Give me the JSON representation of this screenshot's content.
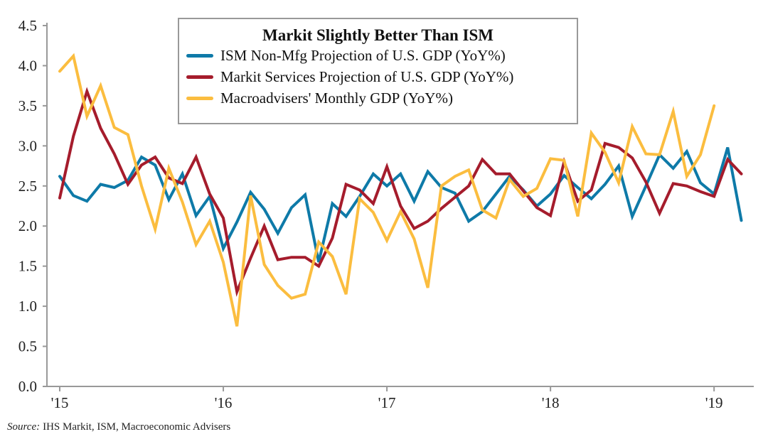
{
  "chart_data": {
    "type": "line",
    "title": "Markit Slightly Better Than ISM",
    "xlabel": "",
    "ylabel": "",
    "ylim": [
      0,
      4.5
    ],
    "yticks": [
      "0.0",
      "0.5",
      "1.0",
      "1.5",
      "2.0",
      "2.5",
      "3.0",
      "3.5",
      "4.0",
      "4.5"
    ],
    "xtick_labels": [
      "'15",
      "'16",
      "'17",
      "'18",
      "'19"
    ],
    "x_start": "2015-01",
    "x_frequency": "monthly",
    "grid": false,
    "legend_position": "top-center",
    "series": [
      {
        "name": "ISM Non-Mfg Projection of U.S. GDP (YoY%)",
        "color": "#0e7aa8",
        "values": [
          2.62,
          2.38,
          2.31,
          2.52,
          2.48,
          2.57,
          2.86,
          2.76,
          2.33,
          2.65,
          2.13,
          2.37,
          1.72,
          2.05,
          2.42,
          2.21,
          1.91,
          2.23,
          2.39,
          1.55,
          2.28,
          2.12,
          2.37,
          2.65,
          2.5,
          2.65,
          2.31,
          2.68,
          2.48,
          2.41,
          2.06,
          2.18,
          2.4,
          2.62,
          2.45,
          2.25,
          2.4,
          2.63,
          2.48,
          2.34,
          2.52,
          2.75,
          2.12,
          2.5,
          2.89,
          2.72,
          2.93,
          2.54,
          2.4,
          2.98,
          2.07
        ]
      },
      {
        "name": "Markit Services Projection of U.S. GDP (YoY%)",
        "color": "#a51c2c",
        "values": [
          2.35,
          3.12,
          3.68,
          3.22,
          2.9,
          2.52,
          2.76,
          2.86,
          2.6,
          2.53,
          2.86,
          2.4,
          2.1,
          1.18,
          1.6,
          2.0,
          1.58,
          1.61,
          1.61,
          1.5,
          1.85,
          2.52,
          2.45,
          2.28,
          2.74,
          2.25,
          1.97,
          2.06,
          2.22,
          2.36,
          2.5,
          2.83,
          2.65,
          2.65,
          2.44,
          2.23,
          2.13,
          2.8,
          2.31,
          2.45,
          3.03,
          2.98,
          2.85,
          2.55,
          2.16,
          2.53,
          2.5,
          2.43,
          2.37,
          2.83,
          2.65
        ]
      },
      {
        "name": "Macroadvisers' Monthly GDP (YoY%)",
        "color": "#fbbd3f",
        "values": [
          3.93,
          4.12,
          3.37,
          3.75,
          3.23,
          3.14,
          2.5,
          1.96,
          2.72,
          2.3,
          1.77,
          2.06,
          1.55,
          0.75,
          2.38,
          1.52,
          1.26,
          1.1,
          1.15,
          1.8,
          1.62,
          1.15,
          2.34,
          2.17,
          1.82,
          2.18,
          1.84,
          1.23,
          2.5,
          2.62,
          2.7,
          2.2,
          2.1,
          2.58,
          2.37,
          2.47,
          2.84,
          2.82,
          2.12,
          3.16,
          2.92,
          2.54,
          3.24,
          2.9,
          2.89,
          3.43,
          2.62,
          2.89,
          3.5
        ]
      }
    ]
  },
  "source": {
    "label": "Source:",
    "text": "IHS Markit, ISM, Macroeconomic Advisers"
  }
}
